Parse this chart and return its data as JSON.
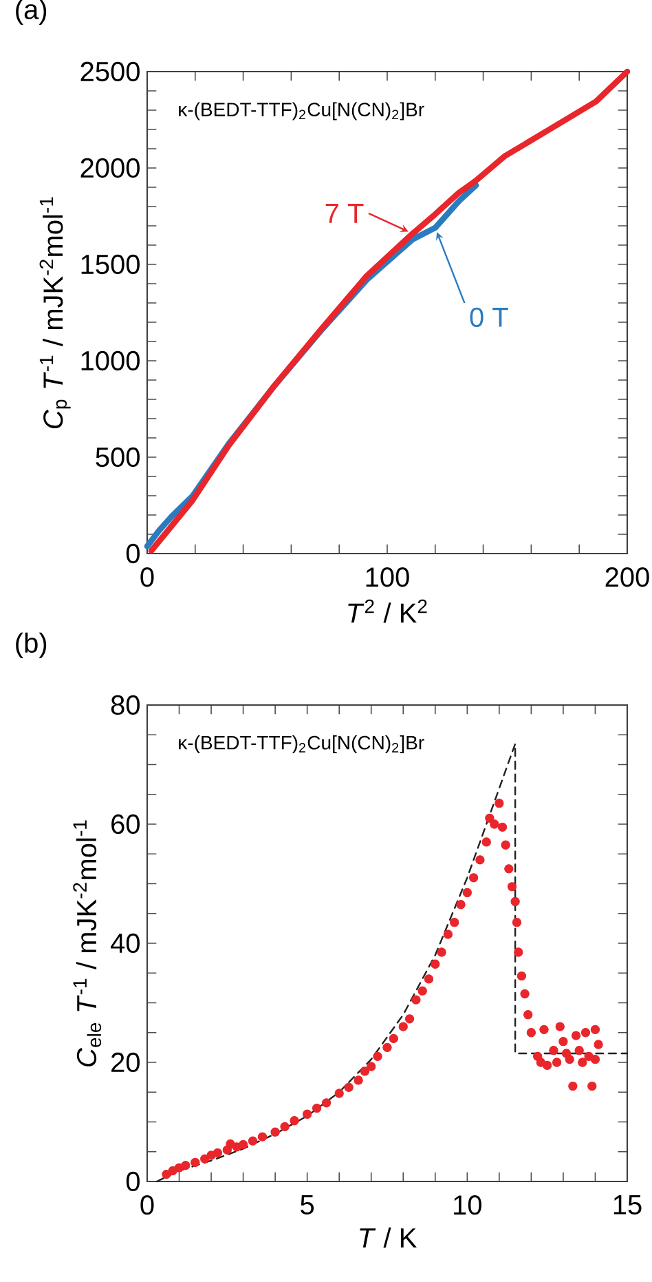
{
  "chart_data": [
    {
      "type": "line",
      "title": "(a)",
      "xlabel": "*T*$^{2}$ / K$^{2}$",
      "ylabel": "*C*$_{p}$ *T*$^{-1}$ / mJK$^{-2}$mol$^{-1}$",
      "annotations": [
        "κ-(BEDT-TTF)$_{2}$Cu[N(CN)$_{2}$]Br"
      ],
      "xlim": [
        0,
        200
      ],
      "ylim": [
        0,
        2500
      ],
      "xticks": [
        0,
        {
          "value": 20,
          "label": null
        },
        {
          "value": 40,
          "label": null
        },
        {
          "value": 60,
          "label": null
        },
        {
          "value": 80,
          "label": null
        },
        100,
        {
          "value": 120,
          "label": null
        },
        {
          "value": 140,
          "label": null
        },
        {
          "value": 160,
          "label": null
        },
        {
          "value": 180,
          "label": null
        },
        200
      ],
      "yticks": [
        0,
        {
          "value": 100,
          "label": null
        },
        {
          "value": 200,
          "label": null
        },
        {
          "value": 300,
          "label": null
        },
        {
          "value": 400,
          "label": null
        },
        500,
        {
          "value": 600,
          "label": null
        },
        {
          "value": 700,
          "label": null
        },
        {
          "value": 800,
          "label": null
        },
        {
          "value": 900,
          "label": null
        },
        1000,
        {
          "value": 1100,
          "label": null
        },
        {
          "value": 1200,
          "label": null
        },
        {
          "value": 1300,
          "label": null
        },
        {
          "value": 1400,
          "label": null
        },
        1500,
        {
          "value": 1600,
          "label": null
        },
        {
          "value": 1700,
          "label": null
        },
        {
          "value": 1800,
          "label": null
        },
        {
          "value": 1900,
          "label": null
        },
        2000,
        {
          "value": 2100,
          "label": null
        },
        {
          "value": 2200,
          "label": null
        },
        {
          "value": 2300,
          "label": null
        },
        {
          "value": 2400,
          "label": null
        },
        2500
      ],
      "series": [
        {
          "name": "0 T",
          "color": "#2b7bbf",
          "x": [
            0,
            5,
            10,
            19,
            34,
            53,
            72,
            91.5,
            110.6,
            120,
            130,
            137
          ],
          "values": [
            38,
            120,
            190,
            300,
            570,
            870,
            1150,
            1420,
            1630,
            1690,
            1830,
            1910
          ]
        },
        {
          "name": "7 T",
          "color": "#e8262b",
          "x": [
            1.7,
            10,
            18.9,
            34,
            53,
            72,
            91.5,
            110.6,
            120,
            129.7,
            137,
            148.8,
            168,
            187,
            200
          ],
          "values": [
            14,
            140,
            276,
            561,
            871,
            1156,
            1441,
            1660,
            1760,
            1870,
            1935,
            2060,
            2203,
            2345,
            2500
          ]
        }
      ]
    },
    {
      "type": "scatter",
      "title": "(b)",
      "xlabel": "*T* / K",
      "ylabel": "*C*$_{ele}$ *T*$^{-1}$ / mJK$^{-2}$mol$^{-1}$",
      "annotations": [
        "κ-(BEDT-TTF)$_{2}$Cu[N(CN)$_{2}$]Br"
      ],
      "xlim": [
        0,
        15
      ],
      "ylim": [
        0,
        80
      ],
      "xticks": [
        0,
        {
          "value": 1,
          "label": null
        },
        {
          "value": 2,
          "label": null
        },
        {
          "value": 3,
          "label": null
        },
        {
          "value": 4,
          "label": null
        },
        5,
        {
          "value": 6,
          "label": null
        },
        {
          "value": 7,
          "label": null
        },
        {
          "value": 8,
          "label": null
        },
        {
          "value": 9,
          "label": null
        },
        10,
        {
          "value": 11,
          "label": null
        },
        {
          "value": 12,
          "label": null
        },
        {
          "value": 13,
          "label": null
        },
        {
          "value": 14,
          "label": null
        },
        15
      ],
      "yticks": [
        0,
        {
          "value": 5,
          "label": null
        },
        {
          "value": 10,
          "label": null
        },
        {
          "value": 15,
          "label": null
        },
        20,
        {
          "value": 25,
          "label": null
        },
        {
          "value": 30,
          "label": null
        },
        {
          "value": 35,
          "label": null
        },
        40,
        {
          "value": 45,
          "label": null
        },
        {
          "value": 50,
          "label": null
        },
        {
          "value": 55,
          "label": null
        },
        60,
        {
          "value": 65,
          "label": null
        },
        {
          "value": 70,
          "label": null
        },
        {
          "value": 75,
          "label": null
        },
        80
      ],
      "series": [
        {
          "color": "#e8262b",
          "marker": "circle",
          "x": [
            0.6,
            0.8,
            1,
            1.2,
            1.5,
            1.8,
            2,
            2.2,
            2.5,
            2.6,
            2.8,
            3,
            3.3,
            3.6,
            4,
            4.3,
            4.6,
            5,
            5.3,
            5.6,
            6,
            6.3,
            6.6,
            6.8,
            7,
            7.2,
            7.5,
            7.7,
            8,
            8.2,
            8.4,
            8.6,
            8.8,
            9,
            9.2,
            9.4,
            9.6,
            9.8,
            10,
            10.2,
            10.4,
            10.6,
            10.7,
            10.85,
            11,
            11.1,
            11.2,
            11.3,
            11.4,
            11.5,
            11.55,
            11.6,
            11.7,
            11.8,
            11.9,
            12,
            12.2,
            12.3,
            12.4,
            12.5,
            12.7,
            12.8,
            12.9,
            13,
            13.1,
            13.2,
            13.3,
            13.4,
            13.5,
            13.6,
            13.7,
            13.8,
            13.9,
            14,
            14,
            14.1
          ],
          "values": [
            1.2,
            1.8,
            2.3,
            2.7,
            3.2,
            3.8,
            4.4,
            4.8,
            5.3,
            6.3,
            5.8,
            6.2,
            6.8,
            7.5,
            8.3,
            9.2,
            10.2,
            11.3,
            12.3,
            13.2,
            14.8,
            15.8,
            17,
            18.5,
            19.3,
            21,
            22.5,
            24,
            26,
            27.3,
            30.5,
            32,
            34,
            36.5,
            38.5,
            41.5,
            43.5,
            46.5,
            48.5,
            51,
            54,
            57,
            61,
            60,
            63.5,
            59.5,
            56.5,
            52.5,
            49.5,
            47,
            43.5,
            38.5,
            34.5,
            31.5,
            28,
            25,
            21,
            20,
            25.5,
            19.5,
            22,
            20,
            26,
            23.5,
            21.5,
            20.5,
            16,
            24.5,
            22,
            20,
            25,
            21,
            16,
            20.5,
            25.5,
            23
          ]
        },
        {
          "type": "line",
          "line_style": "dashed",
          "color": "#222222",
          "x": [
            0.3,
            1,
            2,
            3,
            4,
            5,
            6,
            7,
            8,
            9,
            10,
            11,
            11.5,
            11.5,
            15
          ],
          "values": [
            0,
            1.8,
            3.5,
            5.5,
            8,
            11,
            15,
            20.5,
            28,
            38,
            51,
            66,
            73.5,
            21.5,
            21.5
          ]
        }
      ]
    }
  ]
}
